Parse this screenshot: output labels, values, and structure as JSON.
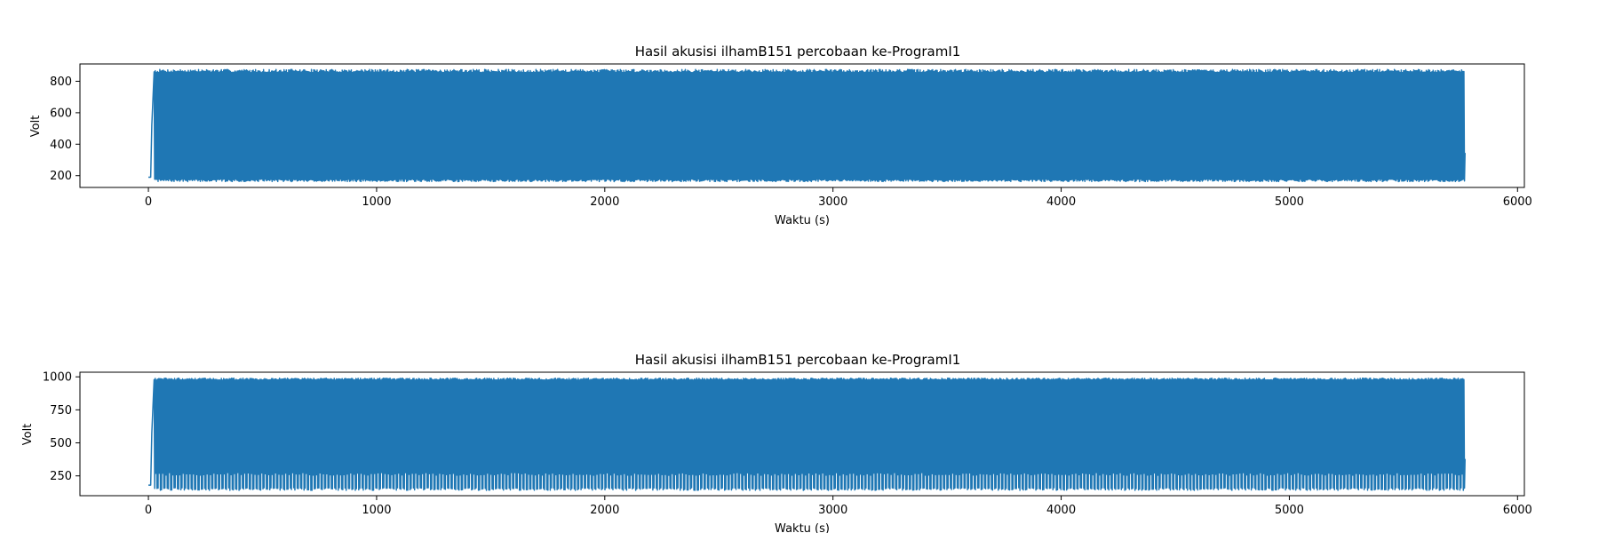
{
  "chart_data": [
    {
      "type": "line",
      "title": "Hasil akusisi ilhamB151 percobaan ke-ProgramI1",
      "xlabel": "Waktu (s)",
      "ylabel": "Volt",
      "xlim": [
        -300,
        6030
      ],
      "ylim": [
        125,
        910
      ],
      "xticks": [
        0,
        1000,
        2000,
        3000,
        4000,
        5000,
        6000
      ],
      "yticks": [
        200,
        400,
        600,
        800
      ],
      "grid": false,
      "color": "#1f77b4",
      "signal": {
        "t_start": 0,
        "t_end": 5770,
        "baseline_start": 190,
        "rise_end": 25,
        "low_min": 162,
        "low_max": 178,
        "high_min": 855,
        "high_max": 875,
        "cycles": 1150
      }
    },
    {
      "type": "line",
      "title": "Hasil akusisi ilhamB151 percobaan ke-ProgramI1",
      "xlabel": "Waktu (s)",
      "ylabel": "Volt",
      "xlim": [
        -300,
        6030
      ],
      "ylim": [
        100,
        1035
      ],
      "xticks": [
        0,
        1000,
        2000,
        3000,
        4000,
        5000,
        6000
      ],
      "yticks": [
        250,
        500,
        750,
        1000
      ],
      "grid": false,
      "color": "#1f77b4",
      "signal": {
        "t_start": 0,
        "t_end": 5770,
        "baseline_start": 180,
        "rise_end": 25,
        "low_min": 140,
        "low_max": 160,
        "high_min": 975,
        "high_max": 990,
        "dip_levels": [
          255,
          275
        ],
        "cycles": 1150
      }
    }
  ]
}
